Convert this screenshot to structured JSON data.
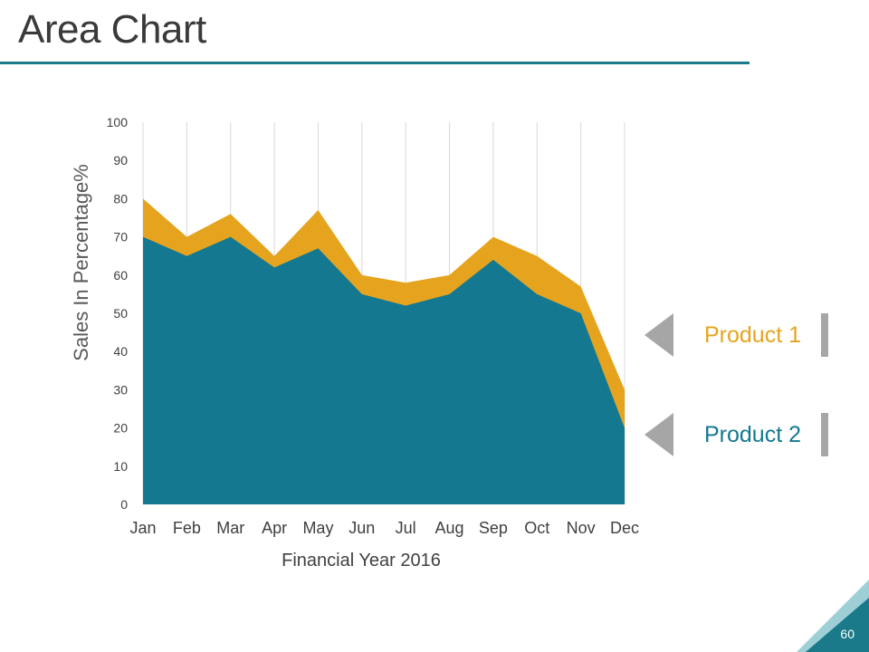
{
  "title": "Area Chart",
  "page_number": "60",
  "colors": {
    "product1": "#e6a41e",
    "product2": "#147891",
    "accent_rule": "#1a7a8a",
    "legend_gray": "#a6a6a6",
    "corner_dark": "#1a7a8a",
    "corner_light": "#9fcfd6"
  },
  "chart_data": {
    "type": "area",
    "stacked": false,
    "title": "",
    "xlabel": "Financial Year 2016",
    "ylabel": "Sales In Percentage%",
    "categories": [
      "Jan",
      "Feb",
      "Mar",
      "Apr",
      "May",
      "Jun",
      "Jul",
      "Aug",
      "Sep",
      "Oct",
      "Nov",
      "Dec"
    ],
    "ylim": [
      0,
      100
    ],
    "yticks": [
      0,
      10,
      20,
      30,
      40,
      50,
      60,
      70,
      80,
      90,
      100
    ],
    "grid": "vertical",
    "series": [
      {
        "name": "Product 1",
        "values": [
          80,
          70,
          76,
          65,
          77,
          60,
          58,
          60,
          70,
          65,
          57,
          30
        ]
      },
      {
        "name": "Product 2",
        "values": [
          70,
          65,
          70,
          62,
          67,
          55,
          52,
          55,
          64,
          55,
          50,
          20
        ]
      }
    ],
    "legend_position": "right"
  }
}
